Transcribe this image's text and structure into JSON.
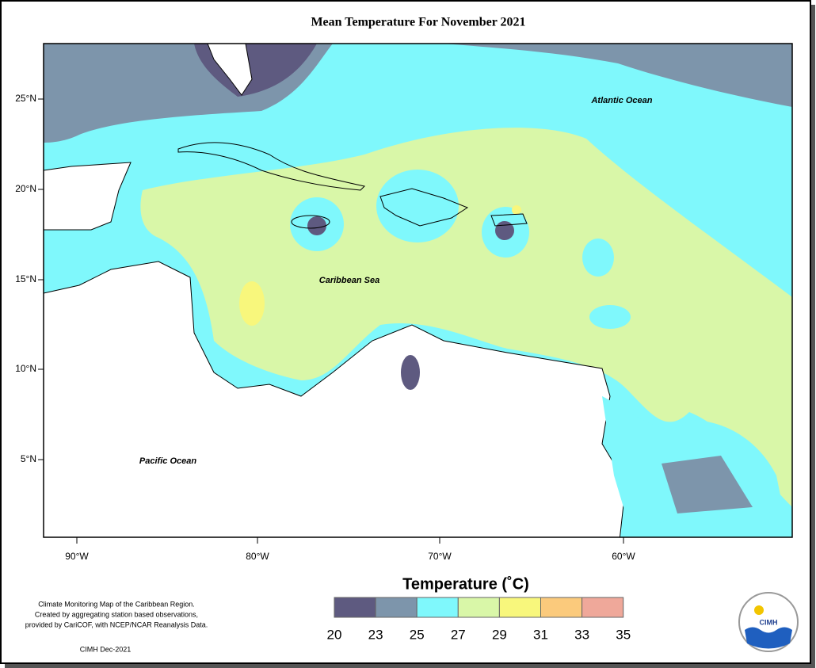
{
  "title": "Mean Temperature For November 2021",
  "map": {
    "latitude_labels": [
      "25°N",
      "20°N",
      "15°N",
      "10°N",
      "5°N"
    ],
    "longitude_labels": [
      "90°W",
      "80°W",
      "70°W",
      "60°W"
    ],
    "place_labels": [
      "Atlantic Ocean",
      "Caribbean Sea",
      "Pacific Ocean"
    ]
  },
  "legend": {
    "title": "Temperature (˚C)",
    "ticks": [
      20,
      23,
      25,
      27,
      29,
      31,
      33,
      35
    ],
    "colors": [
      "#5e5a80",
      "#7d95ab",
      "#7ff8fc",
      "#d9f7a8",
      "#f8f77c",
      "#fbca7c",
      "#efa89a"
    ]
  },
  "credits": {
    "lines": [
      "Climate Monitoring Map of the Caribbean Region.",
      "Created by aggregating station based observations,",
      "provided by CariCOF, with NCEP/NCAR Reanalysis Data."
    ],
    "date": "CIMH Dec-2021"
  },
  "logo": {
    "text": "CIMH"
  }
}
